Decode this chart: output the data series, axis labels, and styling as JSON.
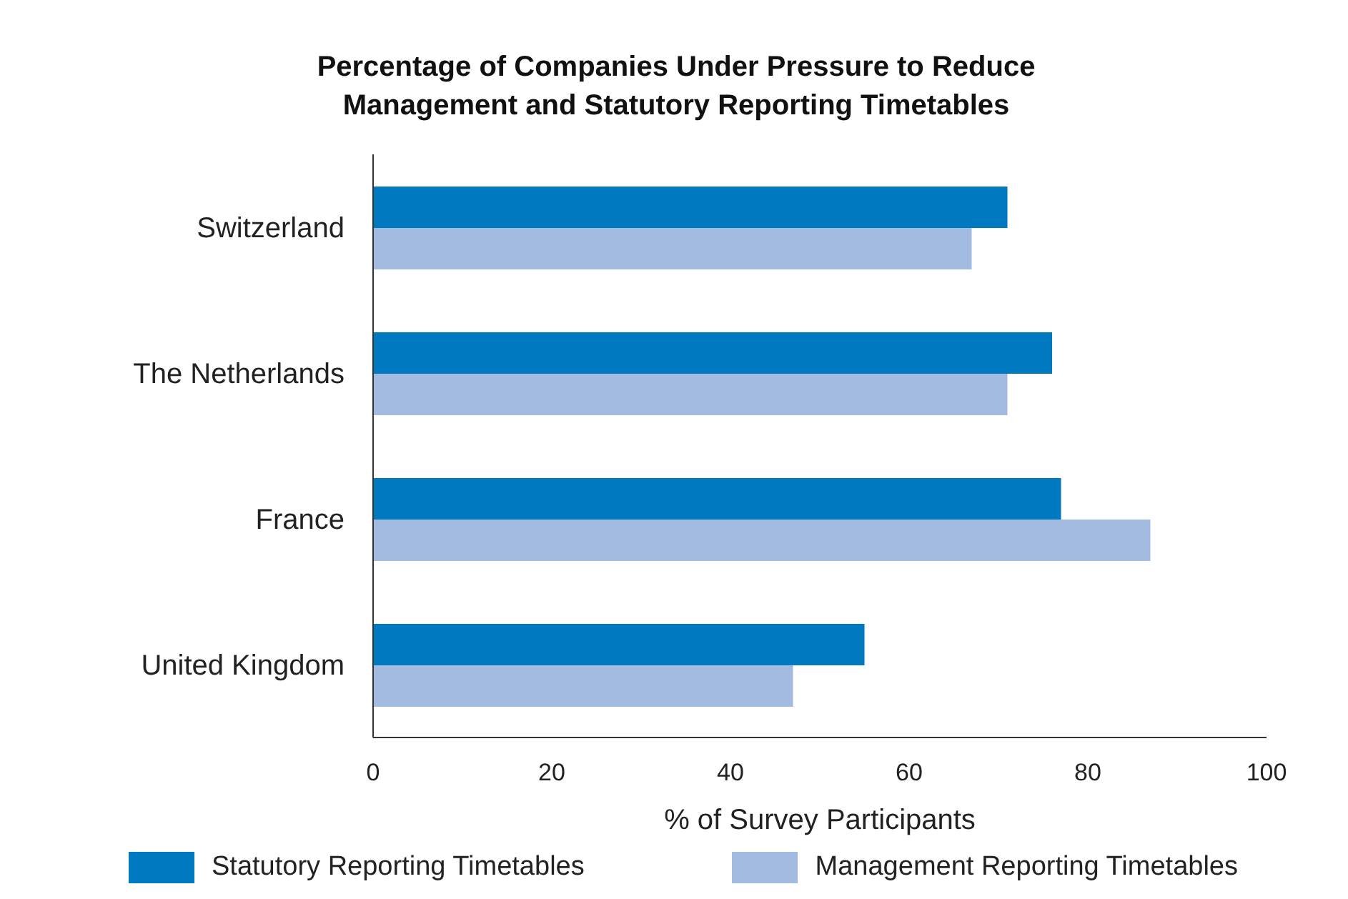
{
  "chart_data": {
    "type": "bar",
    "orientation": "horizontal",
    "title": "Percentage of Companies Under Pressure to Reduce\nManagement and Statutory Reporting Timetables",
    "xlabel": "% of Survey Participants",
    "categories": [
      "Switzerland",
      "The Netherlands",
      "France",
      "United Kingdom"
    ],
    "series": [
      {
        "name": "Statutory Reporting Timetables",
        "color": "#0079c1",
        "values": [
          71,
          76,
          77,
          55
        ]
      },
      {
        "name": "Management Reporting Timetables",
        "color": "#a3bbe0",
        "values": [
          67,
          71,
          87,
          47
        ]
      }
    ],
    "xlim": [
      0,
      100
    ],
    "xticks": [
      0,
      20,
      40,
      60,
      80,
      100
    ],
    "grid": false,
    "legend": "bottom"
  }
}
